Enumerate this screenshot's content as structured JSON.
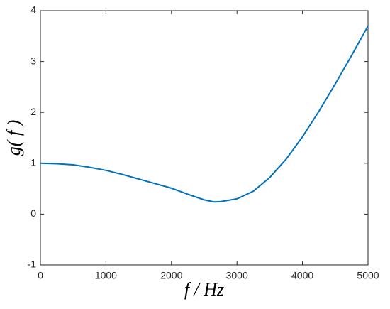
{
  "chart_data": {
    "type": "line",
    "xlabel": "f / Hz",
    "ylabel": "g( f )",
    "x": [
      0,
      250,
      500,
      750,
      1000,
      1250,
      1500,
      1750,
      2000,
      2250,
      2500,
      2650,
      2750,
      3000,
      3250,
      3500,
      3750,
      4000,
      4250,
      4500,
      4750,
      5000
    ],
    "values": [
      1.0,
      0.99,
      0.97,
      0.92,
      0.86,
      0.78,
      0.69,
      0.6,
      0.51,
      0.39,
      0.28,
      0.24,
      0.245,
      0.3,
      0.45,
      0.72,
      1.08,
      1.52,
      2.02,
      2.56,
      3.12,
      3.7
    ],
    "color": "#0072bd",
    "xlim": [
      0,
      5000
    ],
    "xticks": [
      0,
      1000,
      2000,
      3000,
      4000,
      5000
    ],
    "ylim": [
      -1,
      4
    ],
    "yticks": [
      -1,
      0,
      1,
      2,
      3,
      4
    ]
  }
}
